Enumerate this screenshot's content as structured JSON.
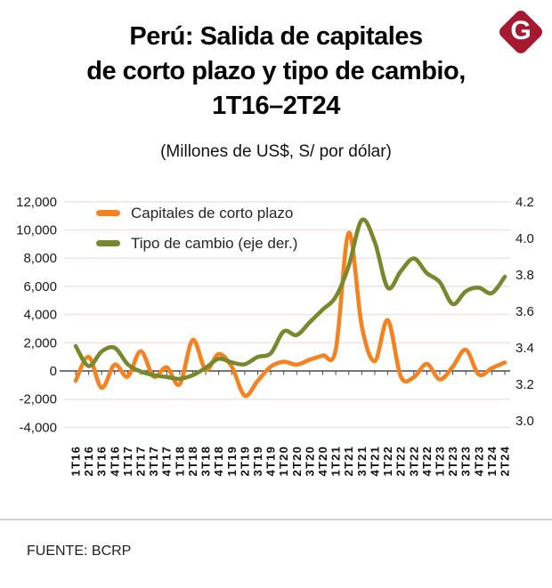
{
  "header": {
    "title": "Perú: Salida de capitales\nde corto plazo y tipo de cambio,\n1T16–2T24",
    "subtitle": "(Millones de US$, S/ por dólar)",
    "logo_letter": "G",
    "logo_color": "#A51931"
  },
  "legend": [
    {
      "label": "Capitales de corto plazo",
      "color": "#F6821F"
    },
    {
      "label": "Tipo de cambio (eje der.)",
      "color": "#78892D"
    }
  ],
  "footer": {
    "source": "FUENTE: BCRP"
  },
  "chart_data": {
    "type": "line",
    "categories": [
      "1T16",
      "2T16",
      "3T16",
      "4T16",
      "1T17",
      "2T17",
      "3T17",
      "4T17",
      "1T18",
      "2T18",
      "3T18",
      "4T18",
      "1T19",
      "2T19",
      "3T19",
      "4T19",
      "1T20",
      "2T20",
      "3T20",
      "4T20",
      "1T21",
      "2T21",
      "3T21",
      "4T21",
      "1T22",
      "2T22",
      "3T22",
      "4T22",
      "1T23",
      "2T23",
      "3T23",
      "4T23",
      "1T24",
      "2T24"
    ],
    "series": [
      {
        "name": "Capitales de corto plazo",
        "axis": "left",
        "color": "#F6821F",
        "values": [
          -700,
          1000,
          -1200,
          450,
          -400,
          1400,
          -400,
          250,
          -950,
          2200,
          100,
          1200,
          300,
          -1750,
          -700,
          300,
          650,
          450,
          800,
          1100,
          1500,
          9800,
          3200,
          700,
          3600,
          -400,
          -450,
          500,
          -600,
          300,
          1500,
          -250,
          200,
          600
        ]
      },
      {
        "name": "Tipo de cambio (eje der.)",
        "axis": "right",
        "color": "#78892D",
        "values": [
          3.41,
          3.3,
          3.38,
          3.4,
          3.31,
          3.27,
          3.25,
          3.24,
          3.23,
          3.25,
          3.29,
          3.34,
          3.32,
          3.31,
          3.35,
          3.37,
          3.49,
          3.47,
          3.54,
          3.61,
          3.68,
          3.85,
          4.1,
          3.98,
          3.73,
          3.82,
          3.89,
          3.81,
          3.76,
          3.64,
          3.71,
          3.73,
          3.7,
          3.79
        ]
      }
    ],
    "left_axis": {
      "min": -4000,
      "max": 12000,
      "step": 2000,
      "ticks": [
        "12,000",
        "10,000",
        "8,000",
        "6,000",
        "4,000",
        "2,000",
        "0",
        "-2,000",
        "-4,000"
      ]
    },
    "right_axis": {
      "min": 3.0,
      "max": 4.2,
      "step": 0.2,
      "ticks": [
        "4.2",
        "4.0",
        "3.8",
        "3.6",
        "3.4",
        "3.2",
        "3.0"
      ]
    },
    "grid": true,
    "legend_position": "top-left",
    "colors": {
      "gridline": "#efe6e2",
      "zero_axis": "#4a4a4a",
      "axis_text": "#1a1a1a"
    }
  }
}
